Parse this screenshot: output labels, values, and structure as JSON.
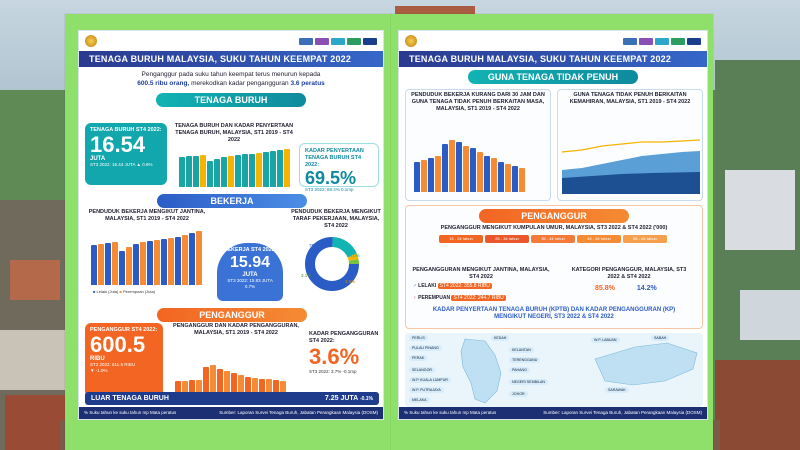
{
  "left": {
    "title": "TENAGA BURUH MALAYSIA, SUKU TAHUN KEEMPAT 2022",
    "intro_line1": "Penganggur pada suku tahun keempat terus menurun kepada",
    "intro_highlight": "600.5 ribu orang,",
    "intro_line2": "merekodkan kadar pengangguran",
    "intro_rate": "3.6 peratus",
    "tenaga_buruh": {
      "heading": "TENAGA BURUH",
      "card_label": "TENAGA BURUH ST4 2022:",
      "value": "16.54",
      "unit": "JUTA",
      "prev": "ST3 2022: 16.44 JUTA",
      "change": "0.6%",
      "chart_title": "TENAGA BURUH DAN KADAR PENYERTAAN TENAGA BURUH, MALAYSIA, ST1 2019 - ST4 2022",
      "kptb_label": "KADAR PENYERTAAN TENAGA BURUH ST4 2022:",
      "kptb_value": "69.5%",
      "kptb_prev": "ST3 2022: 69.4%",
      "kptb_change": "0.1mp"
    },
    "bekerja": {
      "heading": "BEKERJA",
      "chart_title": "PENDUDUK BEKERJA MENGIKUT JANTINA, MALAYSIA, ST1 2019 - ST4 2022",
      "legend_m": "Lelaki (Juta)",
      "legend_f": "Perempuan (Juta)",
      "card_label": "BEKERJA ST4 2022:",
      "value": "15.94",
      "unit": "JUTA",
      "prev": "ST3 2022: 15.83 JUTA",
      "change": "0.7%",
      "skill_title": "PENDUDUK BEKERJA MENGIKUT TARAF PEKERJAAN, MALAYSIA, ST4 2022",
      "donut": [
        "75.3%",
        "18.0%",
        "3.6%",
        "3.1%"
      ]
    },
    "penganggur": {
      "heading": "PENGANGGUR",
      "chart_title": "PENGANGGUR DAN KADAR PENGANGGURAN, MALAYSIA, ST1 2019 - ST4 2022",
      "card_label": "PENGANGGUR ST4 2022:",
      "value": "600.5",
      "unit": "RIBU",
      "prev": "ST3 2022: 611.9 RIBU",
      "change": "-1.9%",
      "rate_label": "KADAR PENGANGGURAN ST4 2022:",
      "rate_value": "3.6%",
      "rate_prev": "ST3 2022: 3.7%",
      "rate_change": "-0.1mp"
    },
    "luar": {
      "label": "LUAR TENAGA BURUH",
      "value": "7.25 JUTA",
      "change": "-0.1%"
    },
    "footer_left": "% Suku tahun ke suku tahun   mp Mata peratus",
    "footer_right": "Sumber: Laporan Survei Tenaga Buruh, Jabatan Perangkaan Malaysia (DOSM)"
  },
  "right": {
    "title": "TENAGA BURUH MALAYSIA, SUKU TAHUN KEEMPAT 2022",
    "gtp_heading": "GUNA TENAGA TIDAK PENUH",
    "gtp_left_title": "PENDUDUK BEKERJA KURANG DARI 30 JAM DAN GUNA TENAGA TIDAK PENUH BERKAITAN MASA, MALAYSIA, ST1 2019 - ST4 2022",
    "gtp_right_title": "GUNA TENAGA TIDAK PENUH BERKAITAN KEMAHIRAN, MALAYSIA, ST1 2019 - ST4 2022",
    "penganggur_heading": "PENGANGGUR",
    "age_title": "PENGANGGUR MENGIKUT KUMPULAN UMUR, MALAYSIA, ST3 2022 & ST4 2022 ('000)",
    "age_groups": [
      "15 - 24 tahun",
      "25 - 34 tahun",
      "35 - 44 tahun",
      "45 - 54 tahun",
      "55 - 64 tahun"
    ],
    "gender_title": "PENGANGGURAN MENGIKUT JANTINA, MALAYSIA, ST4 2022",
    "lelaki": "LELAKI",
    "perempuan": "PEREMPUAN",
    "lelaki_value": "ST4 2022: 355.8 RIBU",
    "perempuan_value": "ST4 2022: 244.7 RIBU",
    "kategori_title": "KATEGORI PENGANGGUR, MALAYSIA, ST3 2022 & ST4 2022",
    "kategori_values": [
      "85.8%",
      "14.2%"
    ],
    "map_title": "KADAR PENYERTAAN TENAGA BURUH (KPTB) DAN KADAR PENGANGGURAN (KP) MENGIKUT NEGERI, ST3 2022 & ST4 2022",
    "states": [
      "PERLIS",
      "KEDAH",
      "PULAU PINANG",
      "PERAK",
      "KELANTAN",
      "TERENGGANU",
      "PAHANG",
      "SELANGOR",
      "W.P. KUALA LUMPUR",
      "W.P. PUTRAJAYA",
      "NEGERI SEMBILAN",
      "MELAKA",
      "JOHOR",
      "SABAH",
      "SARAWAK",
      "W.P. LABUAN"
    ],
    "footer_left": "% Suku tahun ke suku tahun   mp Mata peratus",
    "footer_right": "Sumber: Laporan Survei Tenaga Buruh, Jabatan Perangkaan Malaysia (DOSM)"
  },
  "colors": {
    "frame": "#8ee06a",
    "teal": "#12b3b3",
    "blue": "#2b5cc5",
    "orange": "#f26522",
    "navy": "#1d2f73"
  }
}
